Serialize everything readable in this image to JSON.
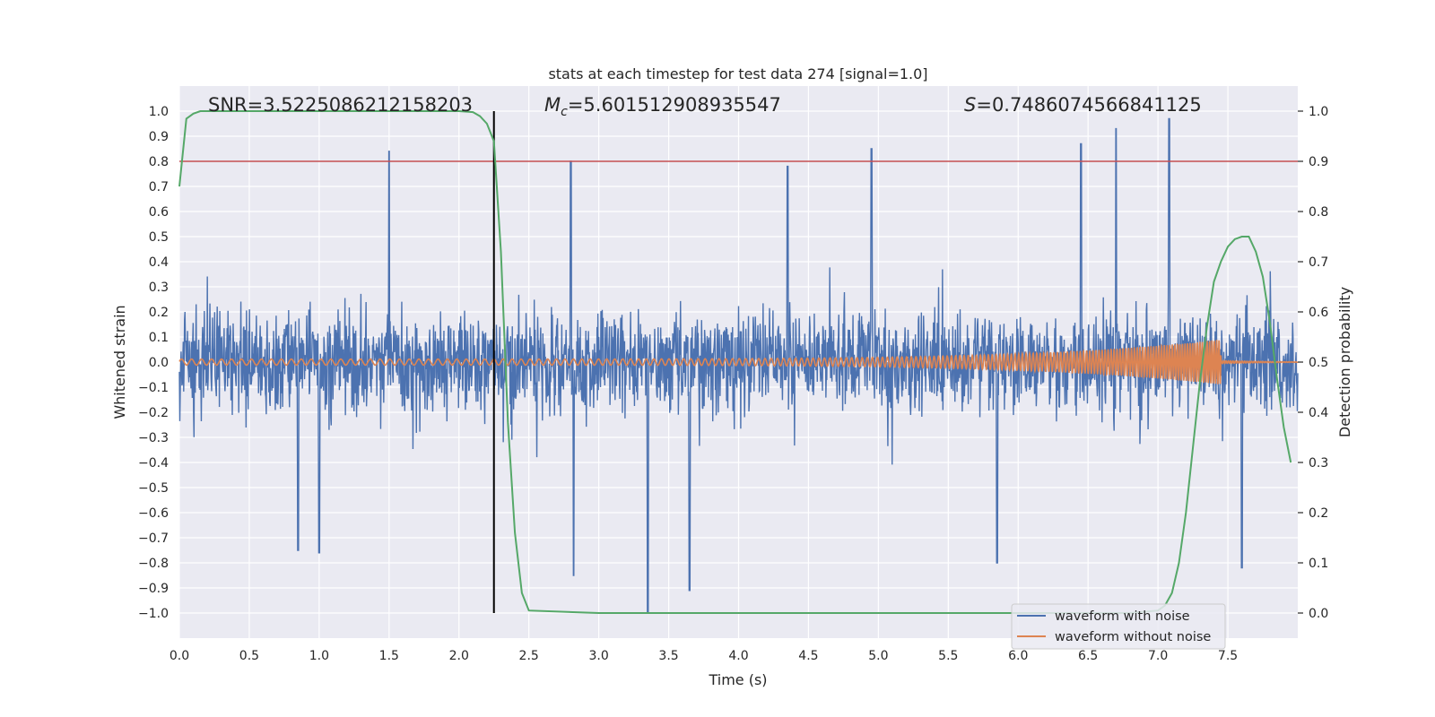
{
  "chart_data": {
    "type": "line",
    "title": "stats at each timestep for test data 274 [signal=1.0]",
    "xlabel": "Time (s)",
    "ylabel_left": "Whitened strain",
    "ylabel_right": "Detection probability",
    "xlim": [
      0.0,
      8.0
    ],
    "ylim_left": [
      -1.1,
      1.1
    ],
    "ylim_right": [
      -0.05,
      1.05
    ],
    "x_ticks": [
      "0.0",
      "0.5",
      "1.0",
      "1.5",
      "2.0",
      "2.5",
      "3.0",
      "3.5",
      "4.0",
      "4.5",
      "5.0",
      "5.5",
      "6.0",
      "6.5",
      "7.0",
      "7.5"
    ],
    "y_left_ticks": [
      "1.0",
      "0.9",
      "0.8",
      "0.7",
      "0.6",
      "0.5",
      "0.4",
      "0.3",
      "0.2",
      "0.1",
      "0.0",
      "−0.1",
      "−0.2",
      "−0.3",
      "−0.4",
      "−0.5",
      "−0.6",
      "−0.7",
      "−0.8",
      "−0.9",
      "−1.0"
    ],
    "y_right_ticks": [
      "1.0",
      "0.9",
      "0.8",
      "0.7",
      "0.6",
      "0.5",
      "0.4",
      "0.3",
      "0.2",
      "0.1",
      "0.0"
    ],
    "grid": true,
    "legend_position": "bottom-right",
    "annotations": {
      "snr": "SNR=3.5225086212158203",
      "mc_symbol": "M",
      "mc_subscript": "c",
      "mc_value": "=5.601512908935547",
      "s_symbol": "S",
      "s_value": "=0.7486074566841125"
    },
    "threshold": 0.9,
    "marker_time": 2.25,
    "series": [
      {
        "name": "waveform with noise",
        "color": "#4c72b0",
        "axis": "left",
        "envelope": {
          "typical_abs": 0.45,
          "max": 0.98,
          "min": -1.0,
          "spikes": [
            [
              1.5,
              0.84
            ],
            [
              2.8,
              0.8
            ],
            [
              4.35,
              0.78
            ],
            [
              4.95,
              0.85
            ],
            [
              6.45,
              0.87
            ],
            [
              6.7,
              0.93
            ],
            [
              7.08,
              0.97
            ],
            [
              3.35,
              -1.0
            ],
            [
              3.65,
              -0.91
            ],
            [
              2.82,
              -0.85
            ],
            [
              1.0,
              -0.76
            ],
            [
              0.85,
              -0.75
            ],
            [
              5.85,
              -0.8
            ],
            [
              7.6,
              -0.82
            ]
          ]
        }
      },
      {
        "name": "waveform without noise",
        "color": "#dd8452",
        "axis": "left",
        "chirp": {
          "start_amplitude": 0.012,
          "merger_time": 7.45,
          "peak_amplitude": 0.09,
          "tail_amplitude": 0.006,
          "start_frequency": 14,
          "end_frequency": 60
        }
      },
      {
        "name": "detection probability",
        "color": "#55a868",
        "axis": "right",
        "x": [
          0.0,
          0.05,
          0.1,
          0.15,
          0.2,
          0.5,
          1.0,
          1.5,
          2.0,
          2.1,
          2.15,
          2.2,
          2.25,
          2.3,
          2.35,
          2.4,
          2.45,
          2.5,
          3.0,
          4.0,
          5.0,
          6.0,
          6.8,
          7.0,
          7.05,
          7.1,
          7.15,
          7.2,
          7.25,
          7.3,
          7.35,
          7.4,
          7.45,
          7.5,
          7.55,
          7.6,
          7.65,
          7.7,
          7.75,
          7.8,
          7.85,
          7.9,
          7.95
        ],
        "values": [
          0.85,
          0.985,
          0.995,
          1.0,
          1.0,
          1.0,
          1.0,
          1.0,
          1.0,
          0.998,
          0.99,
          0.975,
          0.94,
          0.72,
          0.38,
          0.16,
          0.04,
          0.005,
          0.0,
          0.0,
          0.0,
          0.0,
          0.0,
          0.005,
          0.015,
          0.04,
          0.1,
          0.2,
          0.33,
          0.46,
          0.57,
          0.66,
          0.7,
          0.73,
          0.745,
          0.75,
          0.75,
          0.72,
          0.67,
          0.58,
          0.47,
          0.37,
          0.3
        ]
      },
      {
        "name": "threshold",
        "color": "#c44e52",
        "axis": "right"
      },
      {
        "name": "marker",
        "color": "#000000",
        "axis": "right",
        "y_range": [
          0.0,
          1.0
        ]
      }
    ],
    "legend": [
      {
        "label": "waveform with noise",
        "color": "#4c72b0"
      },
      {
        "label": "waveform without noise",
        "color": "#dd8452"
      }
    ],
    "colors": {
      "plot_background": "#eaeaf2",
      "grid": "#ffffff",
      "text": "#262626"
    }
  }
}
